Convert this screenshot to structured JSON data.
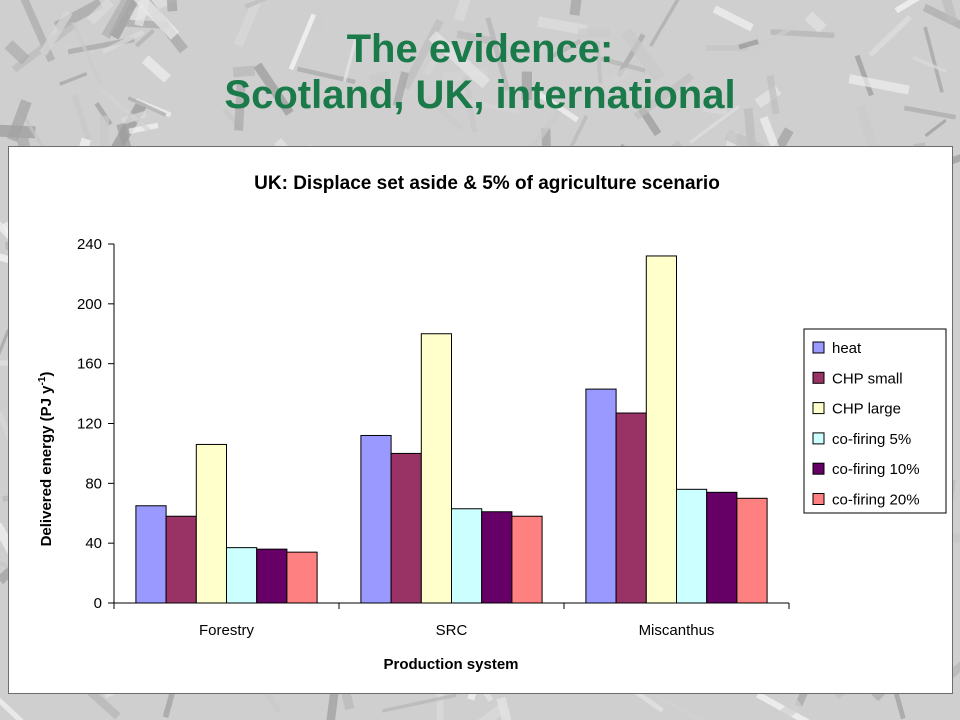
{
  "slide": {
    "title_line1": "The evidence:",
    "title_line2": "Scotland, UK, international",
    "title_color": "#1b7a4a"
  },
  "chart_data": {
    "type": "bar",
    "title": "UK: Displace set aside & 5% of agriculture scenario",
    "xlabel": "Production system",
    "ylabel_main": "Delivered energy (PJ y",
    "ylabel_sup": "-1",
    "ylabel_end": ")",
    "categories": [
      "Forestry",
      "SRC",
      "Miscanthus"
    ],
    "ylim": [
      0,
      240
    ],
    "yticks": [
      0,
      40,
      80,
      120,
      160,
      200,
      240
    ],
    "grid": false,
    "legend_position": "right",
    "series": [
      {
        "name": "heat",
        "color": "#9999ff",
        "values": [
          65,
          112,
          143
        ]
      },
      {
        "name": "CHP small",
        "color": "#993366",
        "values": [
          58,
          100,
          127
        ]
      },
      {
        "name": "CHP large",
        "color": "#ffffcc",
        "values": [
          106,
          180,
          232
        ]
      },
      {
        "name": "co-firing 5%",
        "color": "#ccffff",
        "values": [
          37,
          63,
          76
        ]
      },
      {
        "name": "co-firing 10%",
        "color": "#660066",
        "values": [
          36,
          61,
          74
        ]
      },
      {
        "name": "co-firing 20%",
        "color": "#ff8080",
        "values": [
          34,
          58,
          70
        ]
      }
    ]
  }
}
